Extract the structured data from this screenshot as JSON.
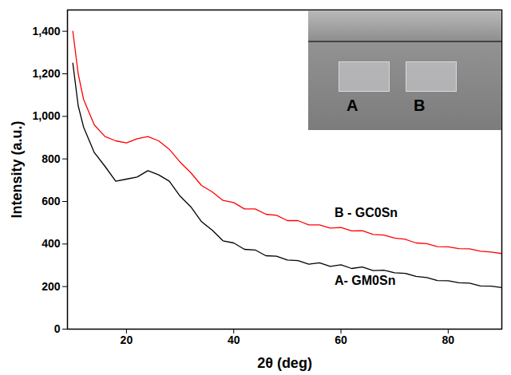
{
  "chart_data": {
    "type": "line",
    "x_label": "2θ (deg)",
    "y_label": "Intensity (a.u.)",
    "xlim": [
      9,
      90
    ],
    "xticks": [
      20,
      40,
      60,
      80
    ],
    "ylim": [
      0,
      1500
    ],
    "yticks": [
      0,
      200,
      400,
      600,
      800,
      1000,
      1200,
      1400
    ],
    "x": [
      10,
      11,
      12,
      14,
      16,
      18,
      20,
      22,
      24,
      26,
      28,
      30,
      32,
      34,
      36,
      38,
      40,
      42,
      44,
      46,
      48,
      50,
      52,
      54,
      56,
      58,
      60,
      62,
      64,
      66,
      68,
      70,
      72,
      74,
      76,
      78,
      80,
      82,
      84,
      86,
      88,
      90
    ],
    "series": [
      {
        "name": "B - GC0Sn",
        "color": "#ff0000",
        "values": [
          1400,
          1200,
          1080,
          960,
          905,
          885,
          875,
          895,
          905,
          885,
          845,
          785,
          735,
          675,
          645,
          605,
          595,
          565,
          565,
          540,
          535,
          510,
          510,
          490,
          490,
          475,
          478,
          462,
          463,
          445,
          442,
          428,
          422,
          405,
          402,
          388,
          387,
          378,
          377,
          366,
          362,
          355
        ]
      },
      {
        "name": "A- GM0Sn",
        "color": "#000000",
        "values": [
          1250,
          1050,
          950,
          830,
          765,
          695,
          705,
          715,
          745,
          725,
          695,
          625,
          575,
          505,
          465,
          415,
          405,
          375,
          372,
          345,
          343,
          325,
          322,
          305,
          312,
          295,
          302,
          285,
          292,
          275,
          277,
          265,
          262,
          248,
          242,
          228,
          227,
          218,
          216,
          203,
          202,
          195
        ]
      }
    ],
    "annotations": [
      "A",
      "B"
    ],
    "grid": false
  }
}
